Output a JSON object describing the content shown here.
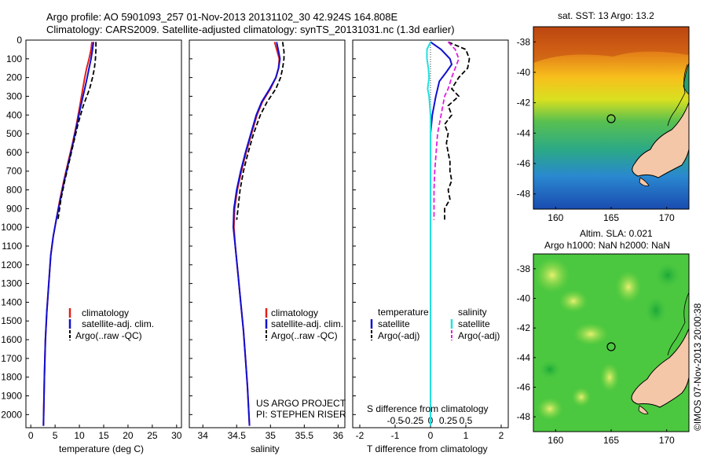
{
  "header": {
    "line1": "Argo profile: AO 5901093_257 01-Nov-2013 20131102_30 42.924S 164.808E",
    "line2": "Climatology: CARS2009. Satellite-adjusted climatology: synTS_20131031.nc (1.3d earlier)"
  },
  "colors": {
    "climatology": "#e0201a",
    "satellite": "#1010d0",
    "argo": "#000000",
    "sat_s": "#22e0e0",
    "argo_s": "#e020e0",
    "land": "#f3c7a8"
  },
  "chart_data": [
    {
      "type": "line",
      "id": "temperature",
      "xlabel": "temperature (deg C)",
      "xlim": [
        -1,
        31
      ],
      "ylim": [
        2070,
        0
      ],
      "xticks": [
        "0",
        "5",
        "10",
        "15",
        "20",
        "25",
        "30"
      ],
      "yticks": [
        "0",
        "100",
        "200",
        "300",
        "400",
        "500",
        "600",
        "700",
        "800",
        "900",
        "1000",
        "1100",
        "1200",
        "1300",
        "1400",
        "1500",
        "1600",
        "1700",
        "1800",
        "1900",
        "2000"
      ],
      "legend": {
        "position": "center-right",
        "entries": [
          "climatology",
          "satellite-adj. clim.",
          "Argo(..raw -QC)"
        ]
      },
      "series": [
        {
          "name": "climatology",
          "style": "solid",
          "points": [
            [
              12.6,
              10
            ],
            [
              12.4,
              50
            ],
            [
              12.0,
              100
            ],
            [
              11.5,
              150
            ],
            [
              11.1,
              200
            ],
            [
              10.7,
              260
            ],
            [
              10.1,
              350
            ],
            [
              9.4,
              450
            ],
            [
              8.6,
              550
            ],
            [
              7.7,
              650
            ],
            [
              6.8,
              750
            ],
            [
              6.0,
              850
            ],
            [
              5.3,
              950
            ],
            [
              4.6,
              1050
            ],
            [
              4.1,
              1150
            ],
            [
              3.7,
              1300
            ],
            [
              3.3,
              1450
            ],
            [
              3.0,
              1600
            ],
            [
              2.8,
              1800
            ],
            [
              2.6,
              2060
            ]
          ]
        },
        {
          "name": "satellite-adj. clim.",
          "style": "solid",
          "points": [
            [
              12.9,
              10
            ],
            [
              12.7,
              50
            ],
            [
              12.4,
              100
            ],
            [
              12.0,
              150
            ],
            [
              11.6,
              200
            ],
            [
              11.1,
              260
            ],
            [
              10.3,
              350
            ],
            [
              9.5,
              450
            ],
            [
              8.7,
              550
            ],
            [
              7.8,
              650
            ],
            [
              6.9,
              750
            ],
            [
              6.1,
              850
            ],
            [
              5.3,
              950
            ],
            [
              4.6,
              1050
            ],
            [
              4.1,
              1150
            ],
            [
              3.7,
              1300
            ],
            [
              3.3,
              1450
            ],
            [
              3.0,
              1600
            ],
            [
              2.8,
              1800
            ],
            [
              2.6,
              2060
            ]
          ]
        },
        {
          "name": "Argo(..raw -QC)",
          "style": "dashed",
          "points": [
            [
              13.4,
              10
            ],
            [
              13.4,
              50
            ],
            [
              13.3,
              100
            ],
            [
              13.1,
              150
            ],
            [
              12.7,
              200
            ],
            [
              12.1,
              260
            ],
            [
              10.8,
              350
            ],
            [
              9.7,
              450
            ],
            [
              8.8,
              550
            ],
            [
              7.9,
              650
            ],
            [
              7.0,
              750
            ],
            [
              6.2,
              850
            ],
            [
              5.6,
              960
            ]
          ]
        }
      ]
    },
    {
      "type": "line",
      "id": "salinity",
      "xlabel": "salinity",
      "xlim": [
        33.8,
        36.1
      ],
      "ylim": [
        2070,
        0
      ],
      "xticks": [
        "34",
        "34.5",
        "35",
        "35.5",
        "36"
      ],
      "legend": {
        "position": "center-right",
        "entries": [
          "climatology",
          "satellite-adj. clim.",
          "Argo(..raw -QC)"
        ]
      },
      "annotation": [
        "US ARGO PROJECT",
        "PI: STEPHEN RISER"
      ],
      "series": [
        {
          "name": "climatology",
          "style": "solid",
          "points": [
            [
              35.06,
              10
            ],
            [
              35.1,
              60
            ],
            [
              35.13,
              100
            ],
            [
              35.12,
              150
            ],
            [
              35.08,
              200
            ],
            [
              35.0,
              260
            ],
            [
              34.88,
              330
            ],
            [
              34.8,
              400
            ],
            [
              34.72,
              500
            ],
            [
              34.64,
              600
            ],
            [
              34.57,
              700
            ],
            [
              34.51,
              800
            ],
            [
              34.47,
              900
            ],
            [
              34.46,
              1000
            ],
            [
              34.48,
              1100
            ],
            [
              34.52,
              1250
            ],
            [
              34.56,
              1400
            ],
            [
              34.6,
              1550
            ],
            [
              34.63,
              1700
            ],
            [
              34.66,
              1850
            ],
            [
              34.69,
              2060
            ]
          ]
        },
        {
          "name": "satellite-adj. clim.",
          "style": "solid",
          "points": [
            [
              35.09,
              10
            ],
            [
              35.12,
              60
            ],
            [
              35.14,
              100
            ],
            [
              35.12,
              150
            ],
            [
              35.08,
              200
            ],
            [
              34.99,
              260
            ],
            [
              34.87,
              330
            ],
            [
              34.79,
              400
            ],
            [
              34.71,
              500
            ],
            [
              34.63,
              600
            ],
            [
              34.56,
              700
            ],
            [
              34.5,
              800
            ],
            [
              34.46,
              900
            ],
            [
              34.45,
              1000
            ],
            [
              34.48,
              1100
            ],
            [
              34.52,
              1250
            ],
            [
              34.56,
              1400
            ],
            [
              34.6,
              1550
            ],
            [
              34.63,
              1700
            ],
            [
              34.66,
              1850
            ],
            [
              34.69,
              2060
            ]
          ]
        },
        {
          "name": "Argo(..raw -QC)",
          "style": "dashed",
          "points": [
            [
              35.18,
              10
            ],
            [
              35.2,
              60
            ],
            [
              35.2,
              100
            ],
            [
              35.18,
              150
            ],
            [
              35.15,
              200
            ],
            [
              35.08,
              260
            ],
            [
              34.95,
              330
            ],
            [
              34.85,
              400
            ],
            [
              34.75,
              500
            ],
            [
              34.67,
              600
            ],
            [
              34.6,
              700
            ],
            [
              34.55,
              800
            ],
            [
              34.52,
              900
            ],
            [
              34.5,
              960
            ]
          ]
        }
      ]
    },
    {
      "type": "line",
      "id": "differences",
      "xlabel": "T difference from climatology",
      "xlabel2": "S difference from climatology",
      "xlim": [
        -2.2,
        2.2
      ],
      "ylim": [
        2070,
        0
      ],
      "xticks": [
        "-2",
        "-1",
        "0",
        "1",
        "2"
      ],
      "xticks2": [
        "-0.5",
        "-0.25",
        "0",
        "0.25",
        "0.5"
      ],
      "legend": {
        "position": "center",
        "temperature_header": "temperature",
        "salinity_header": "salinity",
        "temperature_entries": [
          "satellite",
          "Argo(-adj)"
        ],
        "salinity_entries": [
          "satellite",
          "Argo(-adj)"
        ]
      },
      "series": [
        {
          "name": "satellite",
          "group": "temperature",
          "style": "solid",
          "points": [
            [
              0.0,
              10
            ],
            [
              0.3,
              50
            ],
            [
              0.55,
              100
            ],
            [
              0.6,
              130
            ],
            [
              0.45,
              170
            ],
            [
              0.25,
              220
            ],
            [
              0.15,
              300
            ],
            [
              0.05,
              400
            ],
            [
              0.0,
              500
            ],
            [
              0.0,
              600
            ],
            [
              0.0,
              800
            ],
            [
              0.0,
              1000
            ],
            [
              0.0,
              2060
            ]
          ]
        },
        {
          "name": "Argo(-adj)",
          "group": "temperature",
          "style": "dashed",
          "points": [
            [
              0.5,
              10
            ],
            [
              1.0,
              50
            ],
            [
              1.1,
              100
            ],
            [
              1.05,
              150
            ],
            [
              0.8,
              200
            ],
            [
              0.6,
              260
            ],
            [
              0.8,
              300
            ],
            [
              0.5,
              350
            ],
            [
              0.6,
              400
            ],
            [
              0.4,
              450
            ],
            [
              0.5,
              500
            ],
            [
              0.45,
              550
            ],
            [
              0.5,
              600
            ],
            [
              0.55,
              650
            ],
            [
              0.55,
              700
            ],
            [
              0.6,
              750
            ],
            [
              0.5,
              800
            ],
            [
              0.55,
              850
            ],
            [
              0.4,
              900
            ],
            [
              0.4,
              930
            ],
            [
              0.4,
              960
            ]
          ]
        },
        {
          "name": "satellite",
          "group": "salinity",
          "style": "solid",
          "points": [
            [
              0.0,
              10
            ],
            [
              -0.05,
              50
            ],
            [
              -0.05,
              100
            ],
            [
              -0.03,
              150
            ],
            [
              -0.02,
              200
            ],
            [
              -0.04,
              260
            ],
            [
              -0.02,
              300
            ],
            [
              0.0,
              400
            ],
            [
              0.0,
              500
            ],
            [
              0.0,
              800
            ],
            [
              0.0,
              2060
            ]
          ]
        },
        {
          "name": "Argo(-adj)",
          "group": "salinity",
          "style": "dashed",
          "points": [
            [
              0.25,
              10
            ],
            [
              0.35,
              50
            ],
            [
              0.4,
              100
            ],
            [
              0.35,
              150
            ],
            [
              0.3,
              200
            ],
            [
              0.25,
              260
            ],
            [
              0.2,
              300
            ],
            [
              0.15,
              400
            ],
            [
              0.1,
              500
            ],
            [
              0.08,
              600
            ],
            [
              0.06,
              700
            ],
            [
              0.05,
              800
            ],
            [
              0.05,
              900
            ],
            [
              0.05,
              960
            ]
          ]
        }
      ]
    },
    {
      "type": "heatmap",
      "id": "sst-map",
      "title": "sat. SST: 13 Argo: 13.2",
      "xticks": [
        "160",
        "165",
        "170"
      ],
      "yticks": [
        "-38",
        "-40",
        "-42",
        "-44",
        "-46",
        "-48"
      ],
      "xlim": [
        158,
        172
      ],
      "ylim": [
        -49,
        -37
      ],
      "marker": {
        "lon": 164.808,
        "lat": -42.924
      }
    },
    {
      "type": "heatmap",
      "id": "sla-map",
      "title": "Altim. SLA: 0.021",
      "subtitle": "Argo h1000: NaN h2000: NaN",
      "xticks": [
        "160",
        "165",
        "170"
      ],
      "yticks": [
        "-38",
        "-40",
        "-42",
        "-44",
        "-46",
        "-48"
      ],
      "xlim": [
        158,
        172
      ],
      "ylim": [
        -49,
        -37
      ],
      "marker": {
        "lon": 164.808,
        "lat": -42.924
      }
    }
  ],
  "footer": {
    "side_label": "©IMOS 07-Nov-2013 20:00:38"
  }
}
